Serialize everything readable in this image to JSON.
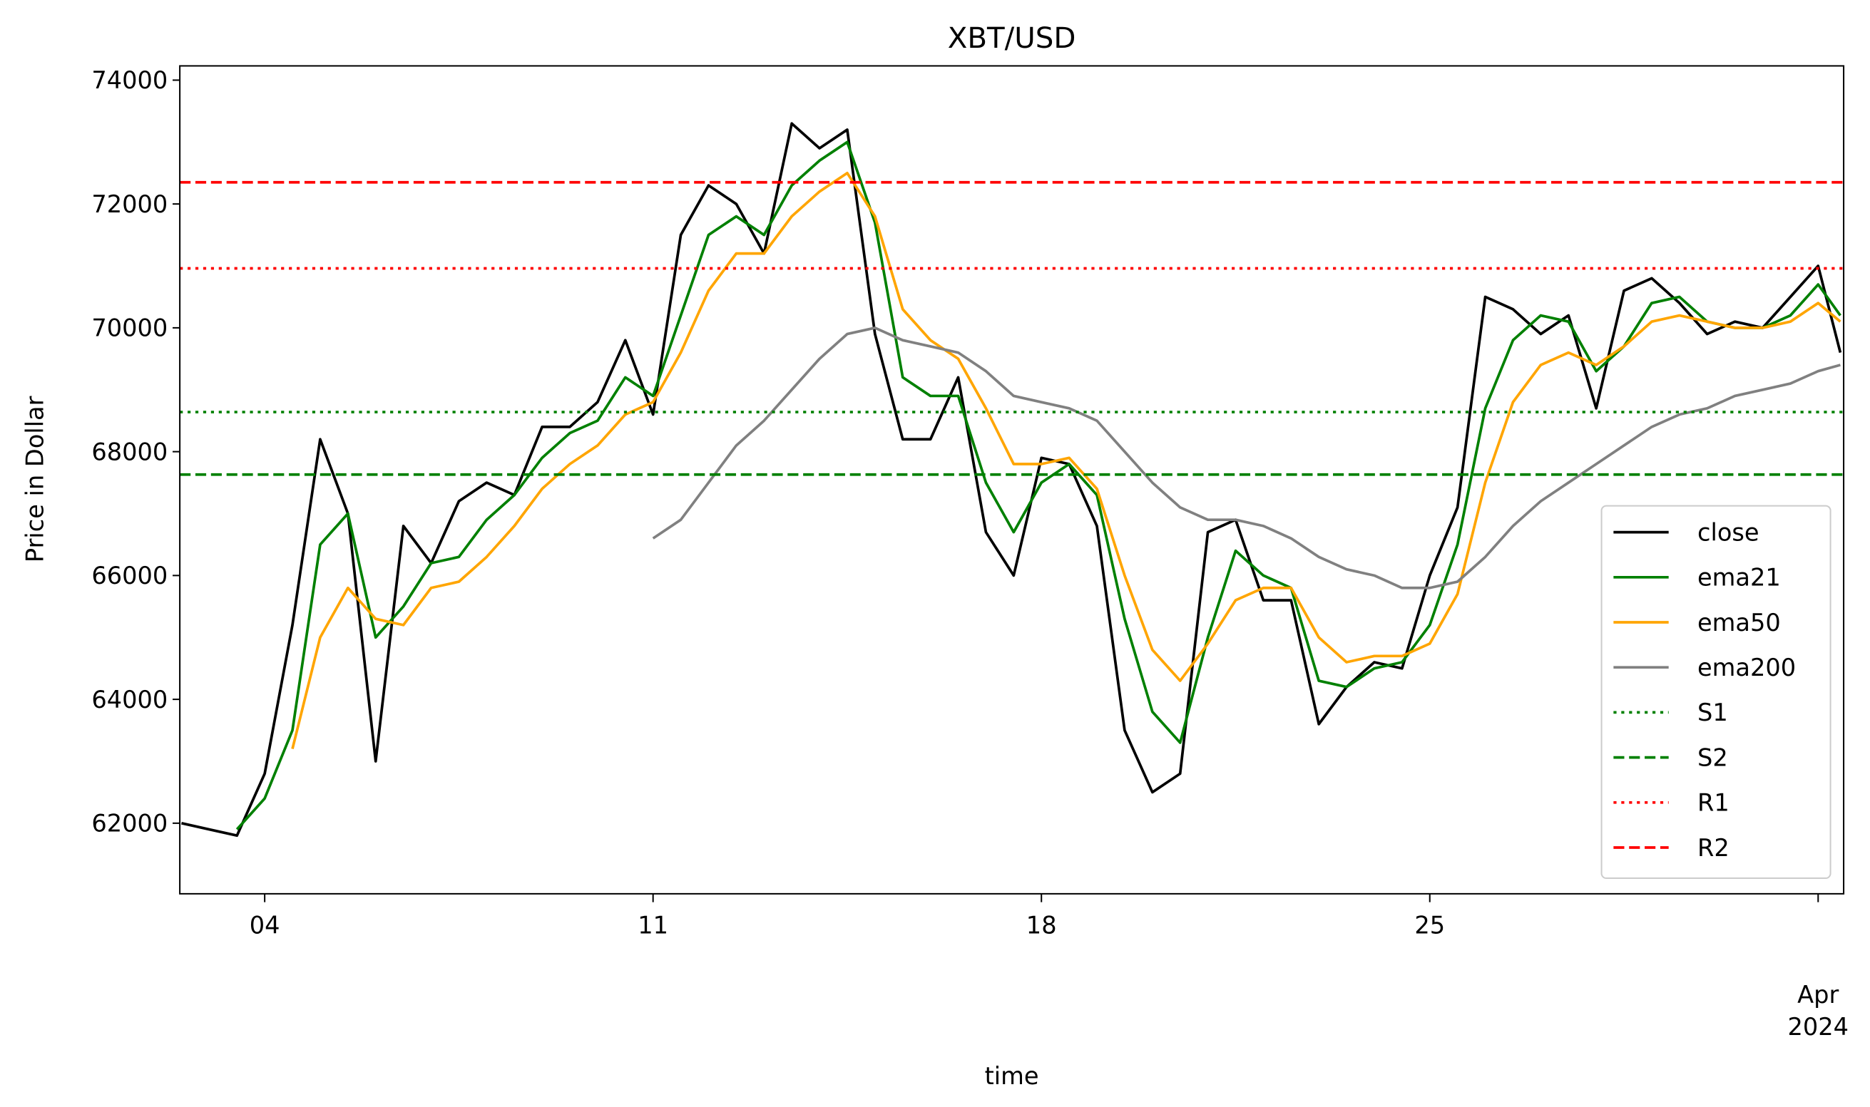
{
  "chart_data": {
    "type": "line",
    "title": "XBT/USD",
    "x_label": "time",
    "y_label": "Price in Dollar",
    "x": [
      2.5,
      3,
      3.5,
      4,
      4.5,
      5,
      5.5,
      6,
      6.5,
      7,
      7.5,
      8,
      8.5,
      9,
      9.5,
      10,
      10.5,
      11,
      11.5,
      12,
      12.5,
      13,
      13.5,
      14,
      14.5,
      15,
      15.5,
      16,
      16.5,
      17,
      17.5,
      18,
      18.5,
      19,
      19.5,
      20,
      20.5,
      21,
      21.5,
      22,
      22.5,
      23,
      23.5,
      24,
      24.5,
      25,
      25.5,
      26,
      26.5,
      27,
      27.5,
      28,
      28.5,
      29,
      29.5,
      30,
      30.5,
      31,
      31.5,
      32,
      32.4
    ],
    "xlim": [
      2.47,
      32.46
    ],
    "xticks": [
      {
        "value": 4,
        "label": "04"
      },
      {
        "value": 11,
        "label": "11"
      },
      {
        "value": 18,
        "label": "18"
      },
      {
        "value": 25,
        "label": "25"
      },
      {
        "value": 32,
        "label": "Apr\n2024"
      }
    ],
    "ylim": [
      60860,
      74230
    ],
    "yticks": [
      62000,
      64000,
      66000,
      68000,
      70000,
      72000,
      74000
    ],
    "legend": "lower right",
    "series": [
      {
        "name": "close",
        "color": "#000000",
        "values": [
          62000,
          61900,
          61800,
          62800,
          65200,
          68200,
          67000,
          63000,
          66800,
          66200,
          67200,
          67500,
          67300,
          68400,
          68400,
          68800,
          69800,
          68600,
          71500,
          72300,
          72000,
          71200,
          73300,
          72900,
          73200,
          69900,
          68200,
          68200,
          69200,
          66700,
          66000,
          67900,
          67800,
          66800,
          63500,
          62500,
          62800,
          66700,
          66900,
          65600,
          65600,
          63600,
          64200,
          64600,
          64500,
          66000,
          67100,
          70500,
          70300,
          69900,
          70200,
          68700,
          70600,
          70800,
          70400,
          69900,
          70100,
          70000,
          70500,
          71000,
          69600
        ]
      },
      {
        "name": "ema21",
        "color": "#008000",
        "values": [
          null,
          null,
          61900,
          62400,
          63500,
          66500,
          67000,
          65000,
          65500,
          66200,
          66300,
          66900,
          67300,
          67900,
          68300,
          68500,
          69200,
          68900,
          70200,
          71500,
          71800,
          71500,
          72300,
          72700,
          73000,
          71700,
          69200,
          68900,
          68900,
          67500,
          66700,
          67500,
          67800,
          67300,
          65300,
          63800,
          63300,
          65000,
          66400,
          66000,
          65800,
          64300,
          64200,
          64500,
          64600,
          65200,
          66500,
          68700,
          69800,
          70200,
          70100,
          69300,
          69700,
          70400,
          70500,
          70100,
          70000,
          70000,
          70200,
          70700,
          70200
        ]
      },
      {
        "name": "ema50",
        "color": "#ffa500",
        "values": [
          null,
          null,
          null,
          null,
          63200,
          65000,
          65800,
          65300,
          65200,
          65800,
          65900,
          66300,
          66800,
          67400,
          67800,
          68100,
          68600,
          68800,
          69600,
          70600,
          71200,
          71200,
          71800,
          72200,
          72500,
          71800,
          70300,
          69800,
          69500,
          68700,
          67800,
          67800,
          67900,
          67400,
          66000,
          64800,
          64300,
          64900,
          65600,
          65800,
          65800,
          65000,
          64600,
          64700,
          64700,
          64900,
          65700,
          67500,
          68800,
          69400,
          69600,
          69400,
          69700,
          70100,
          70200,
          70100,
          70000,
          70000,
          70100,
          70400,
          70100
        ]
      },
      {
        "name": "ema200",
        "color": "#808080",
        "values": [
          null,
          null,
          null,
          null,
          null,
          null,
          null,
          null,
          null,
          null,
          null,
          null,
          null,
          null,
          null,
          null,
          null,
          66600,
          66900,
          67500,
          68100,
          68500,
          69000,
          69500,
          69900,
          70000,
          69800,
          69700,
          69600,
          69300,
          68900,
          68800,
          68700,
          68500,
          68000,
          67500,
          67100,
          66900,
          66900,
          66800,
          66600,
          66300,
          66100,
          66000,
          65800,
          65800,
          65900,
          66300,
          66800,
          67200,
          67500,
          67800,
          68100,
          68400,
          68600,
          68700,
          68900,
          69000,
          69100,
          69300,
          69400
        ]
      },
      {
        "name": "S1",
        "color": "#008000",
        "style": "dotted",
        "level": 68640
      },
      {
        "name": "S2",
        "color": "#008000",
        "style": "dashed",
        "level": 67630
      },
      {
        "name": "R1",
        "color": "#ff0000",
        "style": "dotted",
        "level": 70960
      },
      {
        "name": "R2",
        "color": "#ff0000",
        "style": "dashed",
        "level": 72350
      }
    ]
  }
}
